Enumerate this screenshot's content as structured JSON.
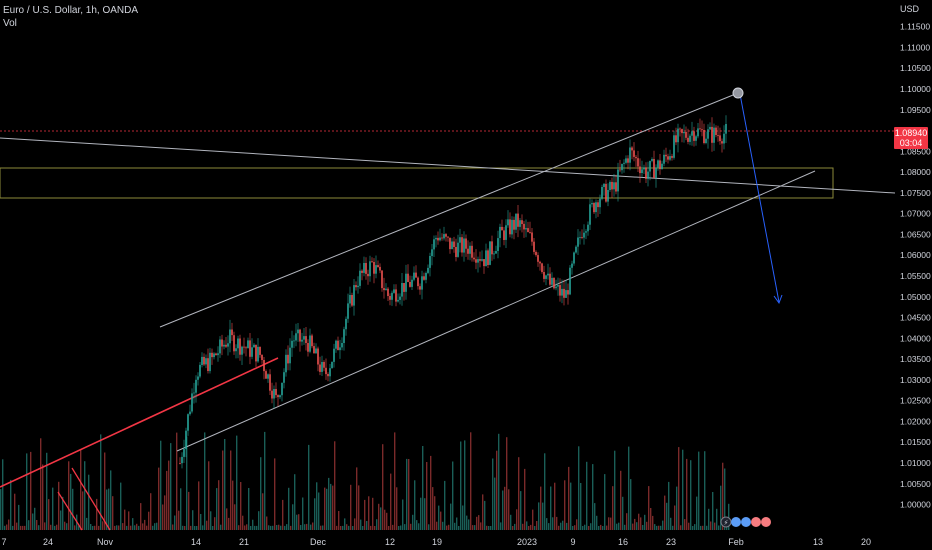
{
  "header": {
    "symbol_line": "Euro / U.S. Dollar, 1h, OANDA",
    "volume_label": "Vol"
  },
  "price_axis": {
    "currency": "USD",
    "labels": [
      "1.11500",
      "1.11000",
      "1.10500",
      "1.10000",
      "1.09500",
      "1.08500",
      "1.08000",
      "1.07500",
      "1.07000",
      "1.06500",
      "1.06000",
      "1.05500",
      "1.05000",
      "1.04500",
      "1.04000",
      "1.03500",
      "1.03000",
      "1.02500",
      "1.02000",
      "1.01500",
      "1.01000",
      "1.00500",
      "1.00000"
    ]
  },
  "last_price": {
    "value": "1.08940",
    "countdown": "03:04",
    "color": "#f23645"
  },
  "time_axis": {
    "labels": [
      "7",
      "24",
      "Nov",
      "14",
      "21",
      "Dec",
      "12",
      "19",
      "2023",
      "9",
      "16",
      "23",
      "Feb",
      "13",
      "20"
    ]
  },
  "colors": {
    "up": "#26a69a",
    "down": "#ef5350",
    "channel": "#b2b5be",
    "zone": "#8d8a3a",
    "trendline_red": "#f23645",
    "arrow": "#2962ff"
  },
  "chart_data": {
    "type": "candlestick",
    "symbol": "Euro / U.S. Dollar",
    "interval": "1h",
    "source": "OANDA",
    "currency": "USD",
    "ylim": [
      0.997,
      1.1195
    ],
    "last_price": 1.0894,
    "series": [
      {
        "date": "Nov 10",
        "close": 1.01
      },
      {
        "date": "Nov 11",
        "close": 1.032
      },
      {
        "date": "Nov 14",
        "close": 1.035
      },
      {
        "date": "Nov 15",
        "close": 1.04
      },
      {
        "date": "Nov 16",
        "close": 1.038
      },
      {
        "date": "Nov 18",
        "close": 1.036
      },
      {
        "date": "Nov 21",
        "close": 1.025
      },
      {
        "date": "Nov 23",
        "close": 1.04
      },
      {
        "date": "Nov 25",
        "close": 1.039
      },
      {
        "date": "Nov 28",
        "close": 1.031
      },
      {
        "date": "Nov 30",
        "close": 1.04
      },
      {
        "date": "Dec 2",
        "close": 1.054
      },
      {
        "date": "Dec 5",
        "close": 1.058
      },
      {
        "date": "Dec 7",
        "close": 1.05
      },
      {
        "date": "Dec 9",
        "close": 1.053
      },
      {
        "date": "Dec 12",
        "close": 1.054
      },
      {
        "date": "Dec 14",
        "close": 1.065
      },
      {
        "date": "Dec 16",
        "close": 1.062
      },
      {
        "date": "Dec 19",
        "close": 1.062
      },
      {
        "date": "Dec 22",
        "close": 1.059
      },
      {
        "date": "Dec 26",
        "close": 1.065
      },
      {
        "date": "Dec 29",
        "close": 1.068
      },
      {
        "date": "Jan 3",
        "close": 1.063
      },
      {
        "date": "Jan 5",
        "close": 1.053
      },
      {
        "date": "Jan 6",
        "close": 1.05
      },
      {
        "date": "Jan 9",
        "close": 1.066
      },
      {
        "date": "Jan 11",
        "close": 1.074
      },
      {
        "date": "Jan 13",
        "close": 1.076
      },
      {
        "date": "Jan 16",
        "close": 1.085
      },
      {
        "date": "Jan 18",
        "close": 1.08
      },
      {
        "date": "Jan 20",
        "close": 1.082
      },
      {
        "date": "Jan 23",
        "close": 1.088
      },
      {
        "date": "Jan 25",
        "close": 1.09
      },
      {
        "date": "Jan 27",
        "close": 1.089
      },
      {
        "date": "Jan 31",
        "close": 1.0894
      }
    ]
  }
}
